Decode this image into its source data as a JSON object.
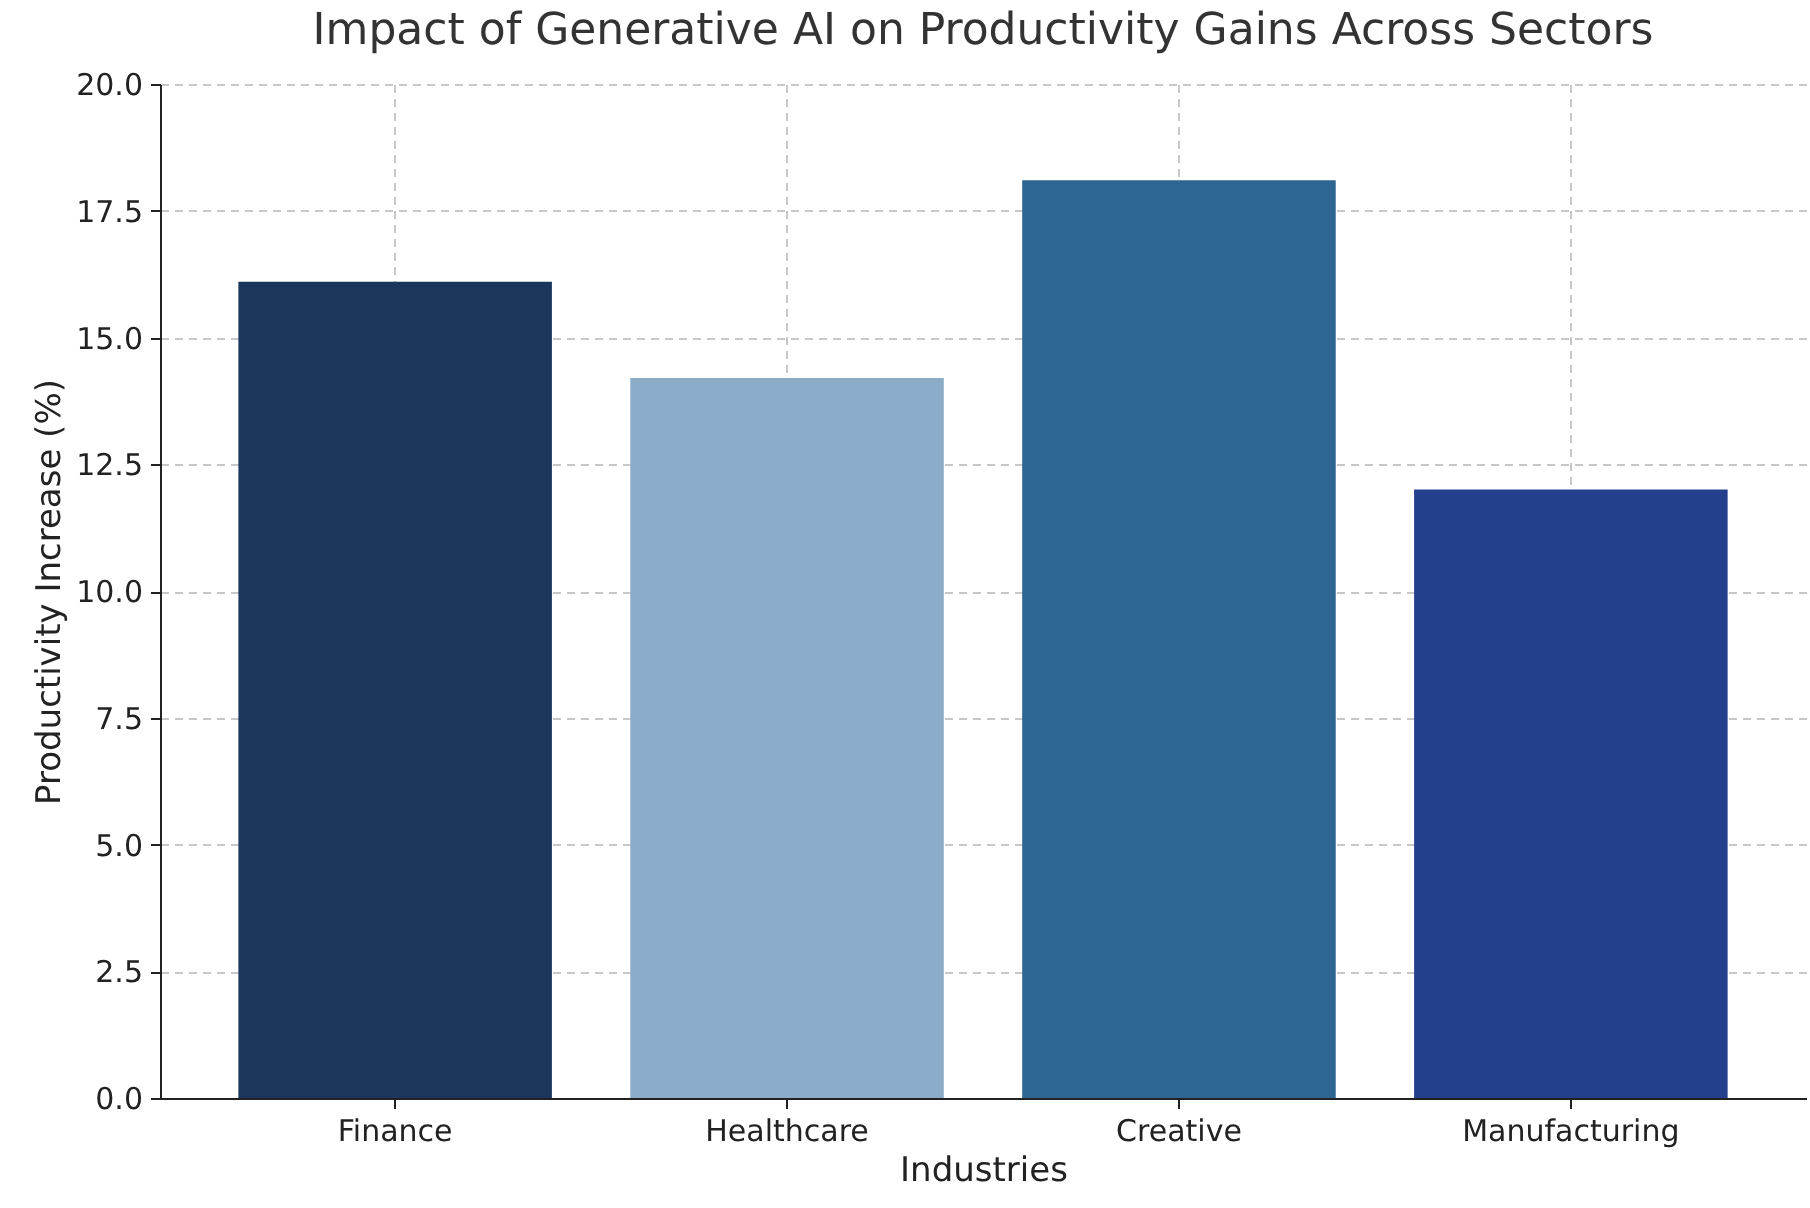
{
  "chart_data": {
    "type": "bar",
    "title": "Impact of Generative AI on Productivity Gains Across Sectors",
    "xlabel": "Industries",
    "ylabel": "Productivity Increase (%)",
    "categories": [
      "Finance",
      "Healthcare",
      "Creative",
      "Manufacturing"
    ],
    "values": [
      16.1,
      14.2,
      18.1,
      12.0
    ],
    "colors": [
      "#1b365d",
      "#8aacc8",
      "#2e6591",
      "#243f8c"
    ],
    "ylim": [
      0,
      20
    ],
    "yticks": [
      {
        "value": 0,
        "label": "0.0"
      },
      {
        "value": 2.5,
        "label": "2.5"
      },
      {
        "value": 5,
        "label": "5.0"
      },
      {
        "value": 7.5,
        "label": "7.5"
      },
      {
        "value": 10,
        "label": "10.0"
      },
      {
        "value": 12.5,
        "label": "12.5"
      },
      {
        "value": 15,
        "label": "15.0"
      },
      {
        "value": 17.5,
        "label": "17.5"
      },
      {
        "value": 20,
        "label": "20.0"
      }
    ],
    "grid": true
  }
}
